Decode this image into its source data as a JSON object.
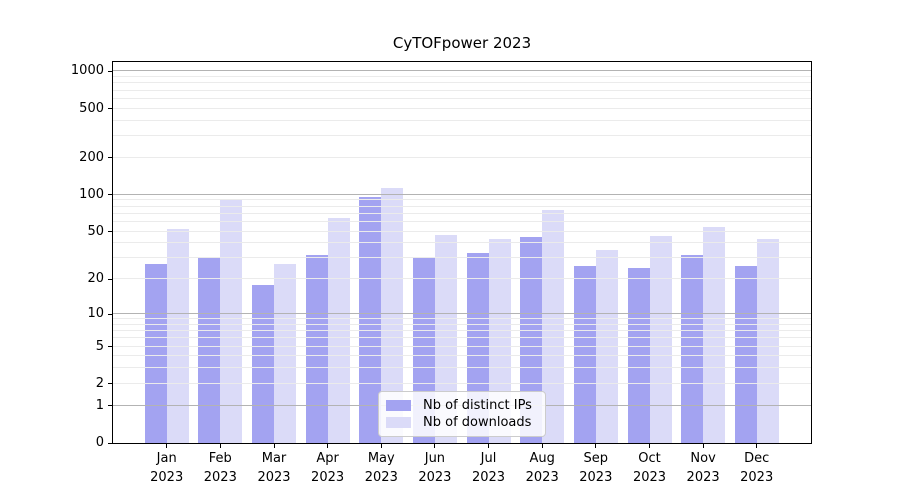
{
  "title": "CyTOFpower 2023",
  "chart_data": {
    "type": "bar",
    "title": "CyTOFpower 2023",
    "categories": [
      "Jan",
      "Feb",
      "Mar",
      "Apr",
      "May",
      "Jun",
      "Jul",
      "Aug",
      "Sep",
      "Oct",
      "Nov",
      "Dec"
    ],
    "x_sublabel": "2023",
    "series": [
      {
        "name": "Nb of distinct IPs",
        "color": "#a3a3f1",
        "values": [
          27,
          30,
          18,
          32,
          96,
          30,
          33,
          45,
          26,
          25,
          32,
          26
        ]
      },
      {
        "name": "Nb of downloads",
        "color": "#dbdbf8",
        "values": [
          52,
          90,
          27,
          64,
          113,
          47,
          43,
          75,
          35,
          46,
          55,
          43
        ]
      }
    ],
    "yaxis": {
      "scale": "log1p",
      "tick_labels": [
        0,
        1,
        2,
        5,
        10,
        20,
        50,
        100,
        200,
        500,
        1000
      ],
      "major_gridlines": [
        1,
        10,
        100,
        1000
      ],
      "minor_gridlines": [
        2,
        3,
        4,
        5,
        6,
        7,
        8,
        9,
        20,
        30,
        40,
        50,
        60,
        70,
        80,
        90,
        200,
        300,
        400,
        500,
        600,
        700,
        800,
        900
      ],
      "ylim": [
        0,
        1190
      ]
    },
    "grid": true,
    "legend_position": "lower-center-inside",
    "colors": {
      "major_grid": "#b3b3b3",
      "minor_grid": "#ebebeb",
      "spine": "#000000"
    }
  },
  "legend": {
    "items": [
      {
        "label": "Nb of distinct IPs"
      },
      {
        "label": "Nb of downloads"
      }
    ]
  }
}
